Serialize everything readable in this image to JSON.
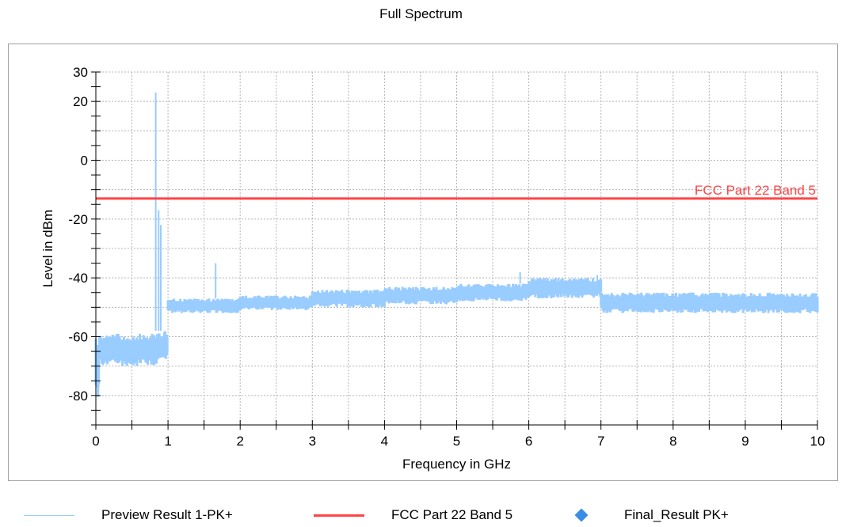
{
  "colors": {
    "preview": "#99ccff",
    "limit": "#ff4444",
    "final": "#3a8de6",
    "grid": "#b4b4b4"
  },
  "legend": {
    "items": [
      {
        "label": "Preview Result 1-PK+",
        "color": "#99ccff",
        "kind": "line"
      },
      {
        "label": "FCC Part 22 Band 5",
        "color": "#ff4444",
        "kind": "thick-line"
      },
      {
        "label": "Final_Result PK+",
        "color": "#3a8de6",
        "kind": "diamond"
      }
    ]
  },
  "chart_data": {
    "type": "line",
    "title": "Full Spectrum",
    "xlabel": "Frequency in GHz",
    "ylabel": "Level in dBm",
    "xlim": [
      0,
      10
    ],
    "ylim": [
      -90,
      30
    ],
    "x_ticks": [
      "0",
      "1",
      "2",
      "3",
      "4",
      "5",
      "6",
      "7",
      "8",
      "9",
      "10"
    ],
    "y_ticks": [
      "30",
      "20",
      "0",
      "-20",
      "-40",
      "-60",
      "-80"
    ],
    "grid": true,
    "legend_position": "bottom",
    "series": [
      {
        "name": "Preview Result 1-PK+",
        "style": "noise-band",
        "band": [
          {
            "x": [
              0.0,
              0.05
            ],
            "low": -82,
            "high": -58
          },
          {
            "x": [
              0.05,
              0.85
            ],
            "low": -70,
            "high": -59
          },
          {
            "x": [
              0.85,
              1.0
            ],
            "low": -68,
            "high": -58
          },
          {
            "x": [
              1.0,
              2.0
            ],
            "low": -52,
            "high": -47
          },
          {
            "x": [
              2.0,
              3.0
            ],
            "low": -51,
            "high": -46
          },
          {
            "x": [
              3.0,
              4.0
            ],
            "low": -50,
            "high": -44
          },
          {
            "x": [
              4.0,
              5.0
            ],
            "low": -49,
            "high": -43
          },
          {
            "x": [
              5.0,
              6.0
            ],
            "low": -48,
            "high": -42
          },
          {
            "x": [
              6.0,
              7.0
            ],
            "low": -47,
            "high": -40
          },
          {
            "x": [
              7.0,
              10.0
            ],
            "low": -52,
            "high": -45
          }
        ],
        "peaks": [
          {
            "x": 0.83,
            "y": 23,
            "base": -58
          },
          {
            "x": 0.87,
            "y": -17,
            "base": -58
          },
          {
            "x": 0.9,
            "y": -22,
            "base": -58
          },
          {
            "x": 1.66,
            "y": -35,
            "base": -47
          },
          {
            "x": 5.88,
            "y": -38,
            "base": -42
          },
          {
            "x": 6.95,
            "y": -39,
            "base": -41
          }
        ]
      },
      {
        "name": "FCC Part 22 Band 5",
        "style": "limit",
        "x": [
          0,
          10
        ],
        "y": [
          -13,
          -13
        ]
      }
    ],
    "annotations": [
      {
        "text": "FCC Part 22 Band 5",
        "x": 10,
        "y": -13
      }
    ]
  }
}
